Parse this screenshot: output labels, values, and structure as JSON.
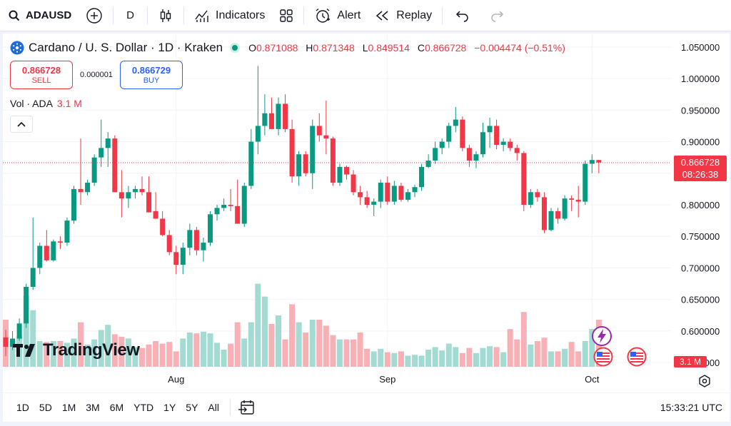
{
  "toolbar": {
    "symbol": "ADAUSD",
    "interval": "D",
    "indicators_label": "Indicators",
    "alert_label": "Alert",
    "replay_label": "Replay"
  },
  "legend": {
    "title": "Cardano / U. S. Dollar · 1D · Kraken",
    "o_label": "O",
    "o_value": "0.871088",
    "h_label": "H",
    "h_value": "0.871348",
    "l_label": "L",
    "l_value": "0.849514",
    "c_label": "C",
    "c_value": "0.866728",
    "change": "−0.004474 (−0.51%)"
  },
  "trade": {
    "sell_price": "0.866728",
    "sell_label": "SELL",
    "spread": "0.000001",
    "buy_price": "0.866729",
    "buy_label": "BUY"
  },
  "volume_legend": {
    "label": "Vol · ADA",
    "value": "3.1 M"
  },
  "price_tag": {
    "price": "0.866728",
    "countdown": "08:26:38"
  },
  "volume_tag": "3.1 M",
  "logo_text": "TradingView",
  "bottom": {
    "ranges": [
      "1D",
      "5D",
      "1M",
      "3M",
      "6M",
      "YTD",
      "1Y",
      "5Y",
      "All"
    ],
    "clock": "15:33:21 UTC"
  },
  "colors": {
    "up": "#089981",
    "down": "#f23645",
    "up_volume": "#a3dbd3",
    "down_volume": "#f7b0b5",
    "accent": "#2962ff"
  },
  "chart_data": {
    "type": "candlestick",
    "title": "Cardano / U. S. Dollar · 1D · Kraken",
    "y_ticks": [
      "1.050000",
      "1.000000",
      "0.950000",
      "0.900000",
      "0.850000",
      "0.800000",
      "0.750000",
      "0.700000",
      "0.650000",
      "0.600000",
      "0.550000"
    ],
    "ylim": [
      0.54,
      1.06
    ],
    "x_ticks": [
      {
        "label": "Aug",
        "index": 25
      },
      {
        "label": "Sep",
        "index": 56
      },
      {
        "label": "Oct",
        "index": 86
      }
    ],
    "last_price": 0.866728,
    "grid": true,
    "candles": [
      [
        0.59,
        0.602,
        0.56,
        0.575,
        0.55
      ],
      [
        0.575,
        0.6,
        0.57,
        0.588,
        0.3
      ],
      [
        0.588,
        0.62,
        0.585,
        0.612,
        0.36
      ],
      [
        0.612,
        0.675,
        0.605,
        0.67,
        0.83
      ],
      [
        0.67,
        0.78,
        0.665,
        0.7,
        0.66
      ],
      [
        0.7,
        0.74,
        0.69,
        0.735,
        0.3
      ],
      [
        0.735,
        0.76,
        0.71,
        0.712,
        0.29
      ],
      [
        0.712,
        0.745,
        0.71,
        0.742,
        0.3
      ],
      [
        0.742,
        0.75,
        0.73,
        0.74,
        0.3
      ],
      [
        0.74,
        0.78,
        0.735,
        0.775,
        0.28
      ],
      [
        0.775,
        0.83,
        0.77,
        0.825,
        0.33
      ],
      [
        0.825,
        0.905,
        0.8,
        0.82,
        0.52
      ],
      [
        0.82,
        0.84,
        0.815,
        0.835,
        0.26
      ],
      [
        0.835,
        0.88,
        0.83,
        0.875,
        0.32
      ],
      [
        0.875,
        0.935,
        0.86,
        0.89,
        0.43
      ],
      [
        0.89,
        0.915,
        0.86,
        0.905,
        0.49
      ],
      [
        0.905,
        0.91,
        0.82,
        0.82,
        0.38
      ],
      [
        0.82,
        0.855,
        0.78,
        0.81,
        0.35
      ],
      [
        0.81,
        0.83,
        0.795,
        0.82,
        0.33
      ],
      [
        0.82,
        0.83,
        0.81,
        0.825,
        0.23
      ],
      [
        0.825,
        0.845,
        0.815,
        0.82,
        0.22
      ],
      [
        0.82,
        0.845,
        0.79,
        0.788,
        0.26
      ],
      [
        0.79,
        0.82,
        0.78,
        0.778,
        0.3
      ],
      [
        0.778,
        0.79,
        0.75,
        0.752,
        0.27
      ],
      [
        0.752,
        0.76,
        0.72,
        0.725,
        0.29
      ],
      [
        0.725,
        0.735,
        0.69,
        0.705,
        0.18
      ],
      [
        0.705,
        0.74,
        0.69,
        0.732,
        0.33
      ],
      [
        0.732,
        0.77,
        0.72,
        0.76,
        0.4
      ],
      [
        0.76,
        0.765,
        0.72,
        0.728,
        0.39
      ],
      [
        0.728,
        0.748,
        0.71,
        0.74,
        0.41
      ],
      [
        0.74,
        0.79,
        0.735,
        0.785,
        0.39
      ],
      [
        0.785,
        0.8,
        0.775,
        0.795,
        0.28
      ],
      [
        0.795,
        0.81,
        0.79,
        0.8,
        0.2
      ],
      [
        0.8,
        0.825,
        0.79,
        0.798,
        0.27
      ],
      [
        0.798,
        0.84,
        0.77,
        0.77,
        0.52
      ],
      [
        0.77,
        0.835,
        0.765,
        0.83,
        0.33
      ],
      [
        0.83,
        0.92,
        0.825,
        0.9,
        0.52
      ],
      [
        0.9,
        1.02,
        0.88,
        0.925,
        0.97
      ],
      [
        0.925,
        0.975,
        0.91,
        0.945,
        0.82
      ],
      [
        0.945,
        0.97,
        0.92,
        0.92,
        0.5
      ],
      [
        0.92,
        0.97,
        0.91,
        0.96,
        0.6
      ],
      [
        0.96,
        0.975,
        0.915,
        0.92,
        0.32
      ],
      [
        0.92,
        0.935,
        0.835,
        0.845,
        0.73
      ],
      [
        0.845,
        0.885,
        0.83,
        0.88,
        0.52
      ],
      [
        0.88,
        0.885,
        0.845,
        0.85,
        0.4
      ],
      [
        0.85,
        0.935,
        0.825,
        0.925,
        0.55
      ],
      [
        0.925,
        0.945,
        0.9,
        0.91,
        0.55
      ],
      [
        0.91,
        0.965,
        0.88,
        0.905,
        0.48
      ],
      [
        0.905,
        0.908,
        0.83,
        0.835,
        0.37
      ],
      [
        0.835,
        0.865,
        0.83,
        0.86,
        0.32
      ],
      [
        0.86,
        0.862,
        0.84,
        0.848,
        0.32
      ],
      [
        0.848,
        0.855,
        0.815,
        0.82,
        0.32
      ],
      [
        0.82,
        0.83,
        0.8,
        0.812,
        0.4
      ],
      [
        0.812,
        0.822,
        0.795,
        0.8,
        0.21
      ],
      [
        0.8,
        0.81,
        0.782,
        0.805,
        0.18
      ],
      [
        0.805,
        0.84,
        0.795,
        0.835,
        0.21
      ],
      [
        0.835,
        0.845,
        0.8,
        0.805,
        0.17
      ],
      [
        0.805,
        0.838,
        0.8,
        0.83,
        0.16
      ],
      [
        0.83,
        0.835,
        0.805,
        0.808,
        0.18
      ],
      [
        0.808,
        0.825,
        0.805,
        0.82,
        0.13
      ],
      [
        0.82,
        0.832,
        0.812,
        0.828,
        0.14
      ],
      [
        0.828,
        0.865,
        0.822,
        0.86,
        0.13
      ],
      [
        0.86,
        0.88,
        0.858,
        0.87,
        0.2
      ],
      [
        0.87,
        0.9,
        0.865,
        0.89,
        0.23
      ],
      [
        0.89,
        0.905,
        0.88,
        0.9,
        0.19
      ],
      [
        0.9,
        0.93,
        0.89,
        0.925,
        0.27
      ],
      [
        0.925,
        0.955,
        0.915,
        0.935,
        0.23
      ],
      [
        0.935,
        0.94,
        0.885,
        0.89,
        0.16
      ],
      [
        0.89,
        0.895,
        0.86,
        0.87,
        0.22
      ],
      [
        0.87,
        0.885,
        0.858,
        0.88,
        0.16
      ],
      [
        0.88,
        0.93,
        0.875,
        0.915,
        0.22
      ],
      [
        0.915,
        0.938,
        0.89,
        0.925,
        0.24
      ],
      [
        0.925,
        0.935,
        0.888,
        0.895,
        0.23
      ],
      [
        0.895,
        0.905,
        0.885,
        0.9,
        0.17
      ],
      [
        0.9,
        0.905,
        0.885,
        0.89,
        0.44
      ],
      [
        0.89,
        0.895,
        0.87,
        0.882,
        0.32
      ],
      [
        0.882,
        0.885,
        0.79,
        0.8,
        0.64
      ],
      [
        0.8,
        0.825,
        0.795,
        0.82,
        0.26
      ],
      [
        0.82,
        0.825,
        0.805,
        0.812,
        0.3
      ],
      [
        0.812,
        0.82,
        0.755,
        0.76,
        0.34
      ],
      [
        0.76,
        0.795,
        0.758,
        0.79,
        0.18
      ],
      [
        0.79,
        0.795,
        0.77,
        0.778,
        0.18
      ],
      [
        0.778,
        0.815,
        0.775,
        0.81,
        0.21
      ],
      [
        0.81,
        0.815,
        0.79,
        0.808,
        0.29
      ],
      [
        0.808,
        0.83,
        0.78,
        0.805,
        0.18
      ],
      [
        0.805,
        0.87,
        0.8,
        0.865,
        0.3
      ],
      [
        0.865,
        0.88,
        0.85,
        0.871,
        0.44
      ],
      [
        0.871,
        0.871,
        0.85,
        0.867,
        0.55
      ]
    ]
  }
}
